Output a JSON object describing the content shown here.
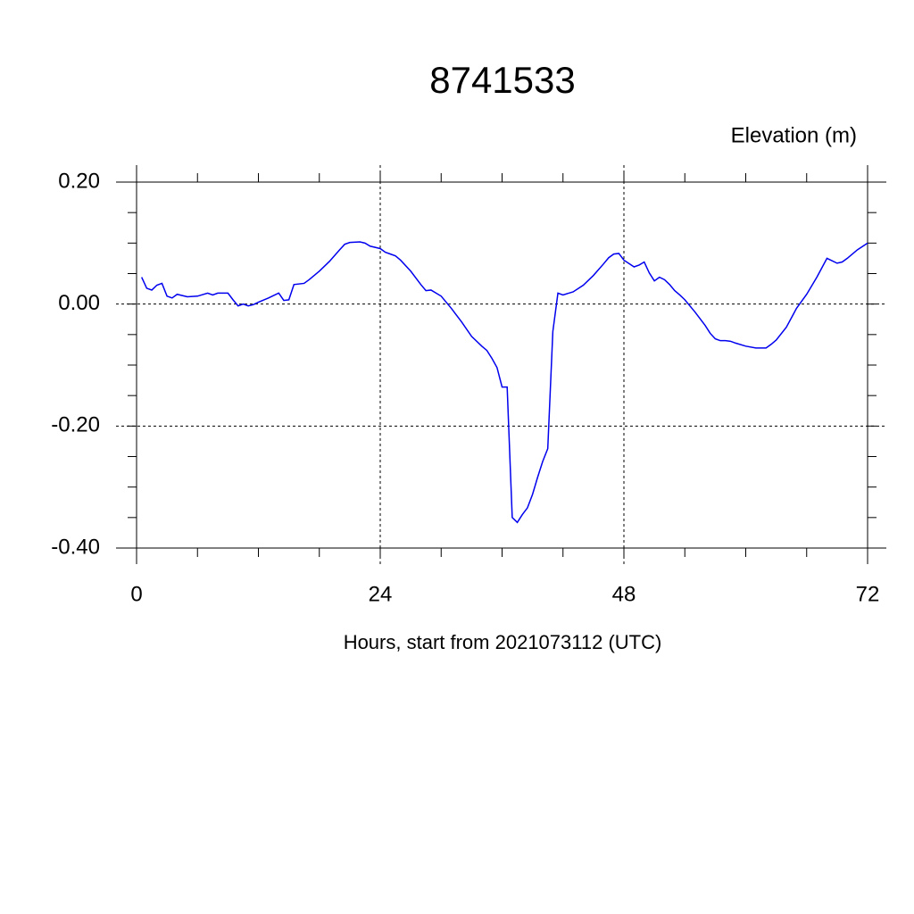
{
  "chart_data": {
    "type": "line",
    "title": "8741533",
    "subtitle": "Elevation (m)",
    "x_label": "Hours, start from 2021073112 (UTC)",
    "x": [
      0.5,
      1,
      1.5,
      2,
      2.5,
      3,
      3.5,
      4,
      5,
      6,
      7,
      7.5,
      8,
      9,
      9.5,
      10,
      10.5,
      11,
      11.5,
      12,
      13,
      14,
      14.5,
      15,
      15.5,
      16.5,
      17,
      18,
      19,
      20,
      20.5,
      21,
      22,
      22.5,
      23,
      24,
      24.5,
      25,
      25.5,
      26,
      27,
      28,
      28.5,
      29,
      29.5,
      30,
      31,
      32,
      33,
      34,
      34.5,
      35,
      35.5,
      36,
      36.5,
      37,
      37.5,
      38,
      38.5,
      39,
      39.5,
      40,
      40.5,
      41,
      41.5,
      42,
      43,
      44,
      45,
      46,
      46.5,
      47,
      47.5,
      48,
      49,
      49.5,
      50,
      50.5,
      51,
      51.5,
      52,
      52.5,
      53,
      53.5,
      54,
      55,
      56,
      56.5,
      57,
      57.5,
      58,
      58.5,
      59,
      60,
      61,
      62,
      62.5,
      63,
      64,
      65,
      66,
      67,
      68,
      69,
      69.5,
      70,
      71,
      72
    ],
    "series": [
      {
        "name": "Elevation",
        "color": "#0000ee",
        "values": [
          0.044,
          0.026,
          0.023,
          0.031,
          0.034,
          0.013,
          0.01,
          0.016,
          0.012,
          0.013,
          0.018,
          0.015,
          0.018,
          0.018,
          0.007,
          -0.003,
          0.0,
          -0.003,
          -0.001,
          0.003,
          0.01,
          0.018,
          0.006,
          0.007,
          0.032,
          0.034,
          0.04,
          0.054,
          0.07,
          0.089,
          0.098,
          0.101,
          0.102,
          0.1,
          0.095,
          0.091,
          0.085,
          0.082,
          0.079,
          0.072,
          0.054,
          0.032,
          0.022,
          0.023,
          0.018,
          0.013,
          -0.007,
          -0.029,
          -0.053,
          -0.069,
          -0.076,
          -0.089,
          -0.104,
          -0.136,
          -0.136,
          -0.35,
          -0.358,
          -0.345,
          -0.334,
          -0.312,
          -0.284,
          -0.258,
          -0.237,
          -0.045,
          0.018,
          0.015,
          0.02,
          0.031,
          0.047,
          0.066,
          0.076,
          0.082,
          0.083,
          0.072,
          0.061,
          0.064,
          0.069,
          0.051,
          0.038,
          0.044,
          0.04,
          0.032,
          0.022,
          0.015,
          0.007,
          -0.013,
          -0.035,
          -0.048,
          -0.057,
          -0.06,
          -0.06,
          -0.061,
          -0.064,
          -0.069,
          -0.072,
          -0.072,
          -0.066,
          -0.059,
          -0.038,
          -0.007,
          0.016,
          0.044,
          0.075,
          0.067,
          0.069,
          0.075,
          0.089,
          0.1
        ]
      }
    ],
    "xlim": [
      0,
      72
    ],
    "xticks": [
      0,
      24,
      48,
      72
    ],
    "ylim": [
      -0.4,
      0.2
    ],
    "yticks": [
      {
        "value": 0.2,
        "label": "0.20"
      },
      {
        "value": 0.0,
        "label": "0.00"
      },
      {
        "value": -0.2,
        "label": "-0.20"
      },
      {
        "value": -0.4,
        "label": "-0.40"
      }
    ],
    "grid": true
  }
}
